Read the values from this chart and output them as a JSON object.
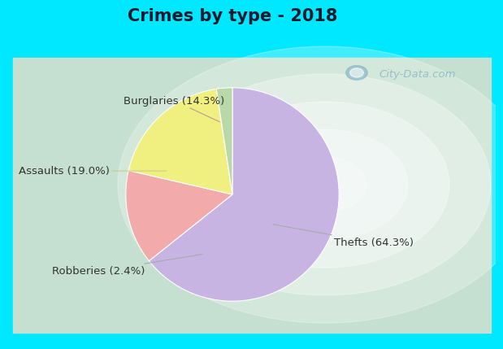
{
  "title": "Crimes by type - 2018",
  "labels": [
    "Thefts",
    "Burglaries",
    "Assaults",
    "Robberies"
  ],
  "values": [
    64.3,
    14.3,
    19.0,
    2.4
  ],
  "colors": [
    "#c8b4e3",
    "#f2aaaa",
    "#f0f080",
    "#b8d8a8"
  ],
  "label_texts": [
    "Thefts (64.3%)",
    "Burglaries (14.3%)",
    "Assaults (19.0%)",
    "Robberies (2.4%)"
  ],
  "title_fontsize": 15,
  "label_fontsize": 9.5,
  "bg_color_top": "#00e8ff",
  "bg_color_main_edge": "#b8e0cc",
  "bg_color_main_center": "#e8f4f0",
  "watermark": "City-Data.com"
}
